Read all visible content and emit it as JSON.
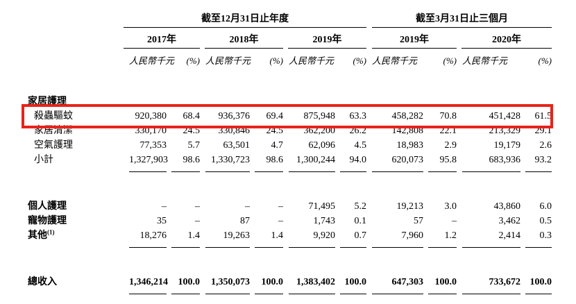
{
  "page": {
    "background": "#ffffff"
  },
  "table": {
    "highlight_color": "#e8231a",
    "groups": [
      {
        "label": "截至12月31日止年度"
      },
      {
        "label": "截至3月31日止三個月"
      }
    ],
    "years": [
      "2017年",
      "2018年",
      "2019年",
      "2019年",
      "2020年"
    ],
    "unit_label": "人民幣千元",
    "pct_label": "(%)",
    "rows": [
      {
        "label": "家居護理",
        "style": "section",
        "cells": []
      },
      {
        "label": "殺蟲驅蚊",
        "style": "item",
        "highlight": true,
        "cells": [
          "920,380",
          "68.4",
          "936,376",
          "69.4",
          "875,948",
          "63.3",
          "458,282",
          "70.8",
          "451,428",
          "61.5"
        ]
      },
      {
        "label": "家居清潔",
        "style": "item",
        "cells": [
          "330,170",
          "24.5",
          "330,846",
          "24.5",
          "362,200",
          "26.2",
          "142,808",
          "22.1",
          "213,329",
          "29.1"
        ]
      },
      {
        "label": "空氣護理",
        "style": "item",
        "cells": [
          "77,353",
          "5.7",
          "63,501",
          "4.7",
          "62,096",
          "4.5",
          "18,983",
          "2.9",
          "19,179",
          "2.6"
        ]
      },
      {
        "label": "小計",
        "style": "item",
        "rule_after": true,
        "cells": [
          "1,327,903",
          "98.6",
          "1,330,723",
          "98.6",
          "1,300,244",
          "94.0",
          "620,073",
          "95.8",
          "683,936",
          "93.2"
        ]
      },
      {
        "gap": true
      },
      {
        "label": "個人護理",
        "style": "bold",
        "cells": [
          "–",
          "–",
          "–",
          "–",
          "71,495",
          "5.2",
          "19,213",
          "3.0",
          "43,860",
          "6.0"
        ]
      },
      {
        "label": "寵物護理",
        "style": "bold",
        "cells": [
          "35",
          "–",
          "87",
          "–",
          "1,743",
          "0.1",
          "57",
          "–",
          "3,462",
          "0.5"
        ]
      },
      {
        "label": "其他",
        "label_sup": "(1)",
        "style": "bold",
        "rule_after": true,
        "cells": [
          "18,276",
          "1.4",
          "19,263",
          "1.4",
          "9,920",
          "0.7",
          "7,960",
          "1.2",
          "2,414",
          "0.3"
        ]
      },
      {
        "gap": true
      },
      {
        "label": "總收入",
        "style": "total",
        "rule_after": true,
        "cells": [
          "1,346,214",
          "100.0",
          "1,350,073",
          "100.0",
          "1,383,402",
          "100.0",
          "647,303",
          "100.0",
          "733,672",
          "100.0"
        ]
      }
    ]
  }
}
